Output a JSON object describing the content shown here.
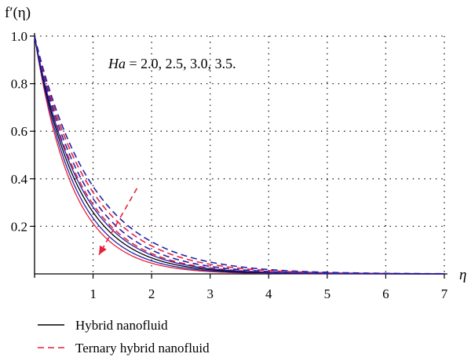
{
  "chart_data": {
    "type": "line",
    "ylabel": "f′(η)",
    "xlabel": "η",
    "xlim": [
      0,
      7
    ],
    "ylim": [
      0,
      1.0
    ],
    "xticks": [
      "1",
      "2",
      "3",
      "4",
      "5",
      "6",
      "7"
    ],
    "yticks": [
      "0.2",
      "0.4",
      "0.6",
      "0.8",
      "1.0"
    ],
    "grid": true,
    "annotation": {
      "param_symbol": "Ha",
      "param_text": " =  2.0, 2.5, 3.0, 3.5."
    },
    "decay_rates_hybrid": [
      1.55,
      1.45,
      1.35,
      1.27
    ],
    "decay_rates_ternary": [
      1.23,
      1.15,
      1.07,
      1.0
    ],
    "series_colors": [
      "#e8213a",
      "#2222aa",
      "#e8213a",
      "#2222aa"
    ],
    "legend": [
      {
        "label": "Hybrid nanofluid",
        "style": "solid",
        "color": "#000000"
      },
      {
        "label": "Ternary hybrid nanofluid",
        "style": "dashed",
        "color": "#e8213a"
      }
    ]
  }
}
